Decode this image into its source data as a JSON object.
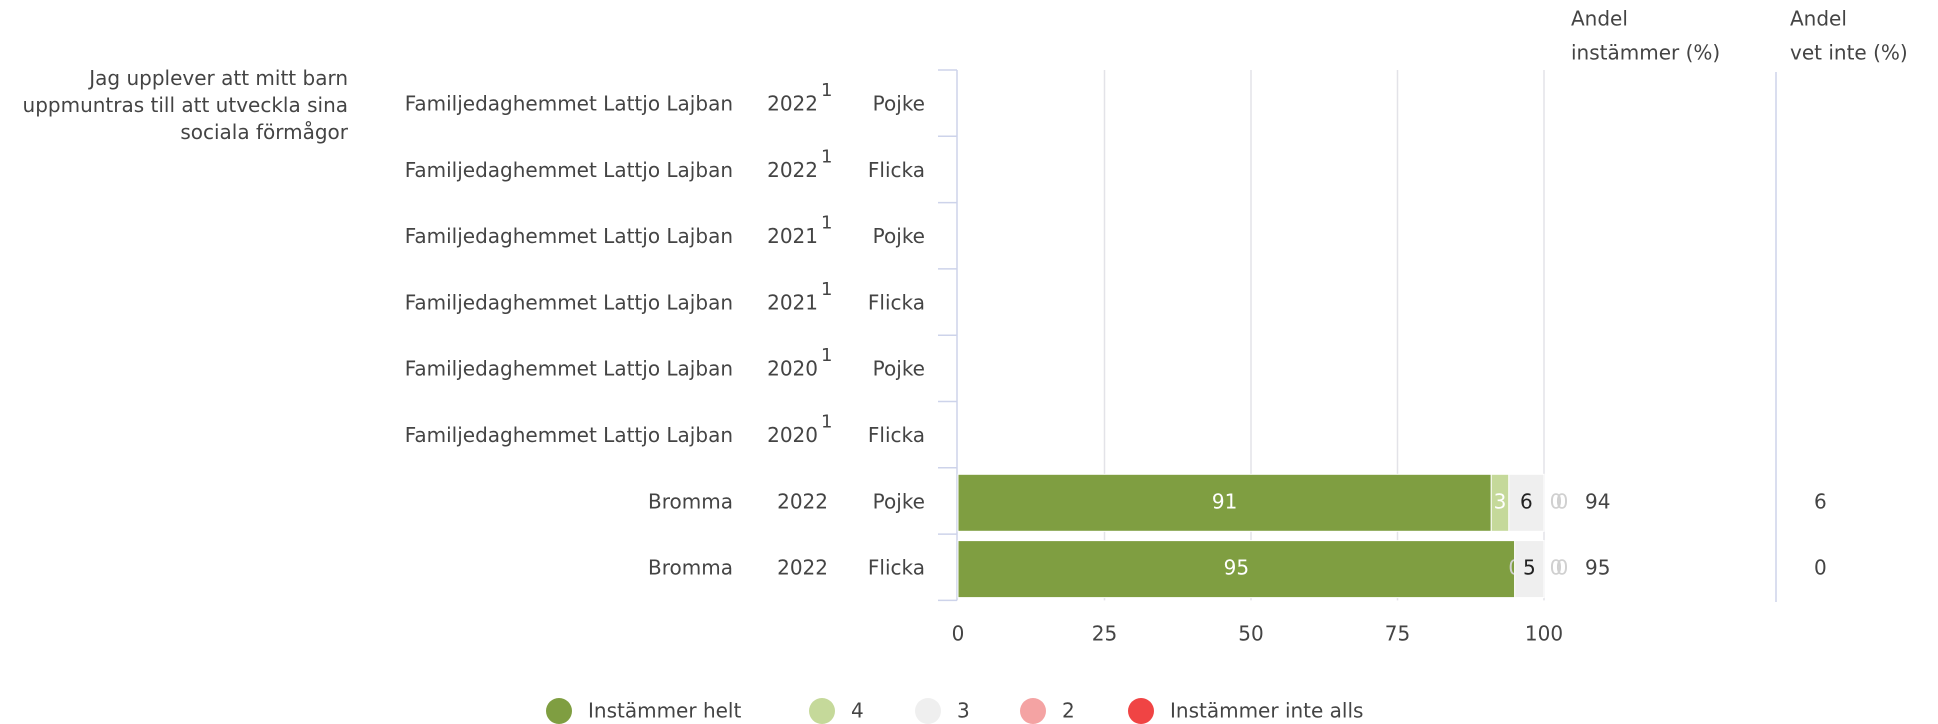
{
  "chart_data": {
    "type": "stacked-bar-horizontal",
    "question": "Jag upplever att mitt barn uppmuntras till att utveckla sina sociala förmågor",
    "rows": [
      {
        "unit": "Familjedaghemmet Lattjo Lajban",
        "year": "2022",
        "note": "1",
        "group": "Pojke"
      },
      {
        "unit": "Familjedaghemmet Lattjo Lajban",
        "year": "2022",
        "note": "1",
        "group": "Flicka"
      },
      {
        "unit": "Familjedaghemmet Lattjo Lajban",
        "year": "2021",
        "note": "1",
        "group": "Pojke"
      },
      {
        "unit": "Familjedaghemmet Lattjo Lajban",
        "year": "2021",
        "note": "1",
        "group": "Flicka"
      },
      {
        "unit": "Familjedaghemmet Lattjo Lajban",
        "year": "2020",
        "note": "1",
        "group": "Pojke"
      },
      {
        "unit": "Familjedaghemmet Lattjo Lajban",
        "year": "2020",
        "note": "1",
        "group": "Flicka"
      },
      {
        "unit": "Bromma",
        "year": "2022",
        "group": "Pojke"
      },
      {
        "unit": "Bromma",
        "year": "2022",
        "group": "Flicka"
      }
    ],
    "series": [
      {
        "name": "Instämmer helt",
        "color": "#7f9e41",
        "values": [
          null,
          null,
          null,
          null,
          null,
          null,
          91,
          95
        ]
      },
      {
        "name": "4",
        "color": "#c5d99a",
        "values": [
          null,
          null,
          null,
          null,
          null,
          null,
          3,
          0
        ]
      },
      {
        "name": "3",
        "color": "#efefef",
        "values": [
          null,
          null,
          null,
          null,
          null,
          null,
          6,
          5
        ]
      },
      {
        "name": "2",
        "color": "#f4a3a3",
        "values": [
          null,
          null,
          null,
          null,
          null,
          null,
          0,
          0
        ]
      },
      {
        "name": "Instämmer inte alls",
        "color": "#f04444",
        "values": [
          null,
          null,
          null,
          null,
          null,
          null,
          0,
          0
        ]
      }
    ],
    "columns": [
      {
        "header": [
          "Andel",
          "instämmer (%)"
        ],
        "values": [
          null,
          null,
          null,
          null,
          null,
          null,
          94,
          95
        ]
      },
      {
        "header": [
          "Andel",
          "vet inte (%)"
        ],
        "values": [
          null,
          null,
          null,
          null,
          null,
          null,
          6,
          0
        ]
      }
    ],
    "xlim": [
      0,
      100
    ],
    "xticks": [
      0,
      25,
      50,
      75,
      100
    ],
    "grid": true
  }
}
